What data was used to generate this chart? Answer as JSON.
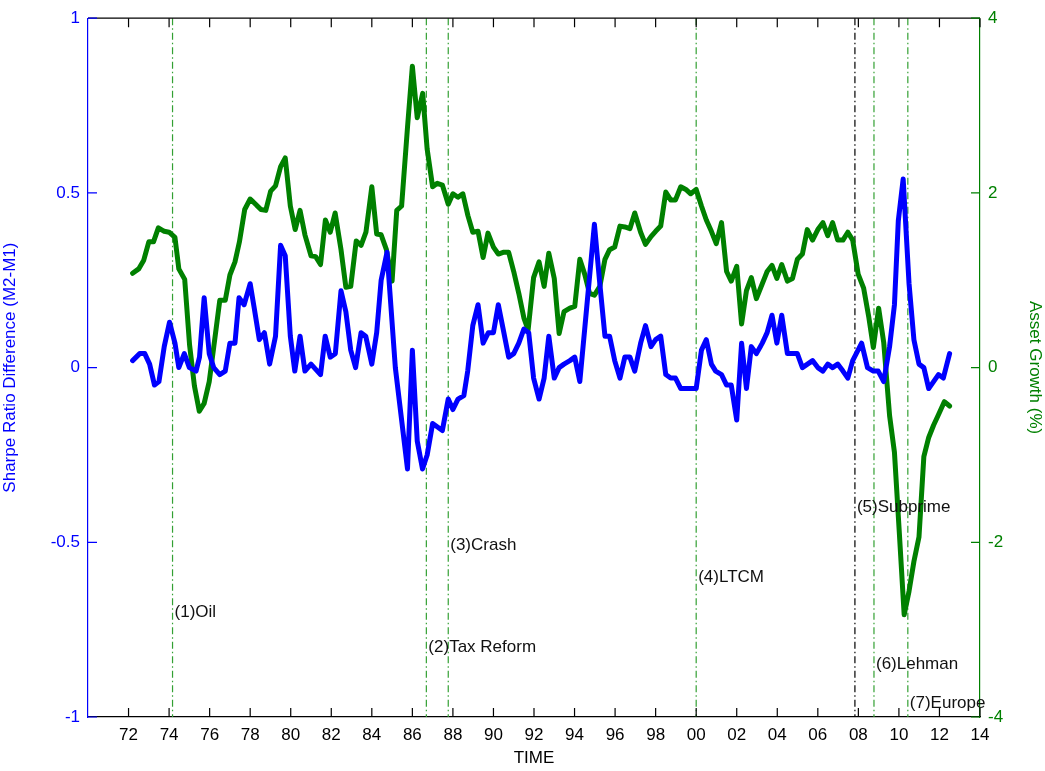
{
  "chart_data": {
    "type": "line",
    "xlabel": "TIME",
    "ylabel": "Sharpe Ratio Difference (M2-M1)",
    "y2label": "Asset Growth (%)",
    "xlim": [
      1970,
      2014
    ],
    "xticks": [
      {
        "value": 1972,
        "label": "72"
      },
      {
        "value": 1974,
        "label": "74"
      },
      {
        "value": 1976,
        "label": "76"
      },
      {
        "value": 1978,
        "label": "78"
      },
      {
        "value": 1980,
        "label": "80"
      },
      {
        "value": 1982,
        "label": "82"
      },
      {
        "value": 1984,
        "label": "84"
      },
      {
        "value": 1986,
        "label": "86"
      },
      {
        "value": 1988,
        "label": "88"
      },
      {
        "value": 1990,
        "label": "90"
      },
      {
        "value": 1992,
        "label": "92"
      },
      {
        "value": 1994,
        "label": "94"
      },
      {
        "value": 1996,
        "label": "96"
      },
      {
        "value": 1998,
        "label": "98"
      },
      {
        "value": 2000,
        "label": "00"
      },
      {
        "value": 2002,
        "label": "02"
      },
      {
        "value": 2004,
        "label": "04"
      },
      {
        "value": 2006,
        "label": "06"
      },
      {
        "value": 2008,
        "label": "08"
      },
      {
        "value": 2010,
        "label": "10"
      },
      {
        "value": 2012,
        "label": "12"
      },
      {
        "value": 2014,
        "label": "14"
      }
    ],
    "ylim": [
      -1,
      1
    ],
    "yticks": [
      -1,
      -0.5,
      0,
      0.5,
      1
    ],
    "y2lim": [
      -4,
      4
    ],
    "y2ticks": [
      -4,
      -2,
      0,
      2,
      4
    ],
    "grid": false,
    "legend": false,
    "marker": "none",
    "line_style": "solid",
    "series": [
      {
        "color": "#0000ff",
        "x": [
          1972.2,
          1972.55,
          1972.8,
          1973.04,
          1973.28,
          1973.5,
          1973.76,
          1974.02,
          1974.29,
          1974.48,
          1974.75,
          1975.0,
          1975.33,
          1975.5,
          1975.73,
          1975.98,
          1976.2,
          1976.5,
          1976.77,
          1977.0,
          1977.25,
          1977.45,
          1977.7,
          1978.0,
          1978.2,
          1978.45,
          1978.7,
          1978.96,
          1979.25,
          1979.5,
          1979.73,
          1979.98,
          1980.2,
          1980.46,
          1980.7,
          1981.0,
          1981.47,
          1981.7,
          1981.95,
          1982.2,
          1982.48,
          1982.72,
          1982.96,
          1983.2,
          1983.47,
          1983.7,
          1984.0,
          1984.24,
          1984.46,
          1984.75,
          1985.16,
          1985.76,
          1986.0,
          1986.24,
          1986.5,
          1986.73,
          1987.0,
          1987.48,
          1987.77,
          1988.0,
          1988.25,
          1988.54,
          1988.73,
          1988.98,
          1989.24,
          1989.49,
          1989.75,
          1990.0,
          1990.24,
          1990.48,
          1990.75,
          1991.0,
          1991.25,
          1991.5,
          1991.74,
          1991.98,
          1992.25,
          1992.5,
          1992.73,
          1993.0,
          1993.24,
          1993.48,
          1993.77,
          1994.01,
          1994.26,
          1994.5,
          1994.98,
          1995.23,
          1995.5,
          1995.73,
          1995.98,
          1996.24,
          1996.48,
          1996.73,
          1996.97,
          1997.26,
          1997.5,
          1997.77,
          1998.0,
          1998.25,
          1998.5,
          1998.74,
          1998.98,
          1999.24,
          1999.49,
          2000.0,
          2000.26,
          2000.5,
          2000.75,
          2000.96,
          2001.25,
          2001.5,
          2001.73,
          2002.0,
          2002.24,
          2002.48,
          2002.72,
          2002.97,
          2003.26,
          2003.5,
          2003.74,
          2003.98,
          2004.22,
          2004.5,
          2004.75,
          2004.99,
          2005.24,
          2005.74,
          2006.0,
          2006.25,
          2006.49,
          2006.73,
          2006.98,
          2007.24,
          2007.48,
          2007.72,
          2008.16,
          2008.45,
          2008.74,
          2008.98,
          2009.25,
          2009.54,
          2009.78,
          2009.97,
          2010.21,
          2010.5,
          2010.74,
          2010.99,
          2011.23,
          2011.47,
          2011.71,
          2011.95,
          2012.19,
          2012.5
        ],
        "values": [
          0.02,
          0.04,
          0.04,
          0.01,
          -0.05,
          -0.04,
          0.06,
          0.13,
          0.07,
          0.0,
          0.04,
          0.0,
          -0.01,
          0.03,
          0.2,
          0.04,
          0.0,
          -0.02,
          -0.01,
          0.07,
          0.07,
          0.2,
          0.18,
          0.24,
          0.17,
          0.08,
          0.1,
          0.01,
          0.09,
          0.35,
          0.32,
          0.09,
          -0.01,
          0.09,
          -0.01,
          0.01,
          -0.02,
          0.09,
          0.03,
          0.04,
          0.22,
          0.16,
          0.05,
          0.0,
          0.1,
          0.09,
          0.01,
          0.1,
          0.25,
          0.33,
          0.0,
          -0.29,
          0.05,
          -0.21,
          -0.29,
          -0.25,
          -0.16,
          -0.18,
          -0.09,
          -0.12,
          -0.09,
          -0.08,
          -0.01,
          0.12,
          0.18,
          0.07,
          0.1,
          0.1,
          0.18,
          0.11,
          0.03,
          0.04,
          0.07,
          0.11,
          0.1,
          -0.03,
          -0.09,
          -0.03,
          0.09,
          -0.03,
          0.0,
          0.01,
          0.02,
          0.03,
          -0.04,
          0.11,
          0.41,
          0.25,
          0.09,
          0.09,
          0.02,
          -0.03,
          0.03,
          0.03,
          -0.01,
          0.07,
          0.12,
          0.06,
          0.08,
          0.09,
          -0.02,
          -0.03,
          -0.03,
          -0.06,
          -0.06,
          -0.06,
          0.05,
          0.08,
          0.01,
          -0.01,
          -0.02,
          -0.05,
          -0.05,
          -0.15,
          0.07,
          -0.06,
          0.06,
          0.04,
          0.07,
          0.1,
          0.15,
          0.07,
          0.15,
          0.04,
          0.04,
          0.04,
          0.0,
          0.02,
          0.0,
          -0.01,
          0.01,
          0.0,
          0.01,
          -0.01,
          -0.03,
          0.02,
          0.07,
          0.0,
          -0.01,
          -0.01,
          -0.04,
          0.06,
          0.18,
          0.42,
          0.54,
          0.24,
          0.08,
          0.01,
          0.0,
          -0.06,
          -0.04,
          -0.02,
          -0.03,
          0.04
        ]
      },
      {
        "color": "#008000",
        "axis": "y2",
        "x": [
          1972.2,
          1972.5,
          1972.75,
          1973.0,
          1973.23,
          1973.47,
          1973.76,
          1974.0,
          1974.29,
          1974.48,
          1974.77,
          1975.01,
          1975.25,
          1975.49,
          1975.73,
          1975.98,
          1976.2,
          1976.5,
          1976.77,
          1977.0,
          1977.25,
          1977.47,
          1977.73,
          1978.0,
          1978.27,
          1978.53,
          1978.77,
          1979.01,
          1979.25,
          1979.5,
          1979.73,
          1979.98,
          1980.22,
          1980.46,
          1980.7,
          1981.0,
          1981.23,
          1981.47,
          1981.71,
          1981.95,
          1982.19,
          1982.48,
          1982.72,
          1982.96,
          1983.23,
          1983.47,
          1983.71,
          1984.0,
          1984.24,
          1984.46,
          1984.72,
          1985.0,
          1985.23,
          1985.47,
          1985.76,
          1986.0,
          1986.24,
          1986.51,
          1986.73,
          1987.0,
          1987.23,
          1987.48,
          1987.77,
          1988.0,
          1988.25,
          1988.49,
          1988.74,
          1988.98,
          1989.24,
          1989.49,
          1989.73,
          1990.0,
          1990.24,
          1990.48,
          1990.75,
          1991.0,
          1991.25,
          1991.5,
          1991.71,
          1991.98,
          1992.25,
          1992.5,
          1992.73,
          1993.0,
          1993.24,
          1993.48,
          1993.77,
          1994.01,
          1994.26,
          1994.5,
          1994.74,
          1994.98,
          1995.25,
          1995.5,
          1995.73,
          1995.98,
          1996.24,
          1996.48,
          1996.73,
          1996.97,
          1997.26,
          1997.5,
          1997.77,
          1998.0,
          1998.25,
          1998.5,
          1998.74,
          1998.98,
          1999.24,
          1999.49,
          1999.73,
          2000.0,
          2000.26,
          2000.5,
          2000.75,
          2000.99,
          2001.25,
          2001.5,
          2001.73,
          2002.0,
          2002.24,
          2002.48,
          2002.72,
          2002.97,
          2003.26,
          2003.5,
          2003.74,
          2003.98,
          2004.22,
          2004.5,
          2004.75,
          2004.99,
          2005.24,
          2005.48,
          2005.74,
          2006.0,
          2006.25,
          2006.49,
          2006.73,
          2006.98,
          2007.24,
          2007.48,
          2007.72,
          2007.99,
          2008.26,
          2008.52,
          2008.74,
          2009.0,
          2009.25,
          2009.54,
          2009.78,
          2010.02,
          2010.26,
          2010.5,
          2010.74,
          2010.99,
          2011.23,
          2011.47,
          2011.71,
          2011.95,
          2012.24,
          2012.5
        ],
        "values": [
          1.08,
          1.13,
          1.23,
          1.44,
          1.44,
          1.6,
          1.56,
          1.55,
          1.49,
          1.13,
          1.01,
          0.26,
          -0.21,
          -0.5,
          -0.41,
          -0.16,
          0.23,
          0.77,
          0.77,
          1.06,
          1.21,
          1.44,
          1.81,
          1.93,
          1.87,
          1.81,
          1.8,
          2.02,
          2.08,
          2.3,
          2.4,
          1.85,
          1.58,
          1.8,
          1.52,
          1.28,
          1.27,
          1.18,
          1.69,
          1.55,
          1.77,
          1.35,
          0.92,
          0.93,
          1.45,
          1.4,
          1.55,
          2.07,
          1.53,
          1.52,
          1.35,
          0.99,
          1.8,
          1.85,
          2.75,
          3.45,
          2.86,
          3.14,
          2.5,
          2.07,
          2.11,
          2.09,
          1.87,
          1.99,
          1.95,
          1.99,
          1.74,
          1.55,
          1.56,
          1.26,
          1.54,
          1.38,
          1.3,
          1.32,
          1.32,
          1.1,
          0.85,
          0.57,
          0.43,
          1.03,
          1.21,
          0.93,
          1.31,
          1.02,
          0.39,
          0.64,
          0.68,
          0.7,
          1.24,
          1.07,
          0.85,
          0.83,
          0.93,
          1.24,
          1.35,
          1.38,
          1.62,
          1.61,
          1.59,
          1.77,
          1.55,
          1.41,
          1.5,
          1.56,
          1.62,
          2.01,
          1.92,
          1.92,
          2.07,
          2.04,
          1.99,
          2.04,
          1.85,
          1.69,
          1.56,
          1.42,
          1.66,
          1.1,
          0.99,
          1.16,
          0.5,
          0.88,
          1.03,
          0.79,
          0.96,
          1.1,
          1.17,
          1.02,
          1.18,
          0.99,
          1.02,
          1.24,
          1.3,
          1.58,
          1.46,
          1.58,
          1.66,
          1.51,
          1.66,
          1.46,
          1.46,
          1.55,
          1.46,
          1.07,
          0.91,
          0.57,
          0.23,
          0.68,
          0.29,
          -0.55,
          -0.97,
          -1.89,
          -2.83,
          -2.56,
          -2.22,
          -1.94,
          -1.02,
          -0.8,
          -0.66,
          -0.54,
          -0.39,
          -0.44
        ]
      }
    ],
    "ref_lines": [
      {
        "axis": "x",
        "value": 1974.17,
        "color": "#33a033",
        "line_style": "dashed"
      },
      {
        "axis": "x",
        "value": 1986.69,
        "color": "#33a033",
        "line_style": "dashed"
      },
      {
        "axis": "x",
        "value": 1987.77,
        "color": "#33a033",
        "line_style": "dashed"
      },
      {
        "axis": "x",
        "value": 2000.0,
        "color": "#33a033",
        "line_style": "dashed"
      },
      {
        "axis": "x",
        "value": 2007.83,
        "color": "#000000",
        "line_style": "dashed"
      },
      {
        "axis": "x",
        "value": 2008.77,
        "color": "#33a033",
        "line_style": "dashed"
      },
      {
        "axis": "x",
        "value": 2010.44,
        "color": "#33a033",
        "line_style": "dashed"
      }
    ],
    "annotations": [
      {
        "text": "(1)Oil",
        "x": 1974.17,
        "y": -0.7
      },
      {
        "text": "(2)Tax Reform",
        "x": 1986.69,
        "y": -0.8
      },
      {
        "text": "(3)Crash",
        "x": 1987.77,
        "y": -0.51
      },
      {
        "text": "(4)LTCM",
        "x": 2000.0,
        "y": -0.6
      },
      {
        "text": "(5)Subprime",
        "x": 2007.83,
        "y": -0.4
      },
      {
        "text": "(6)Lehman",
        "x": 2008.77,
        "y": -0.85
      },
      {
        "text": "(7)Europe",
        "x": 2010.44,
        "y": -0.96
      }
    ]
  }
}
